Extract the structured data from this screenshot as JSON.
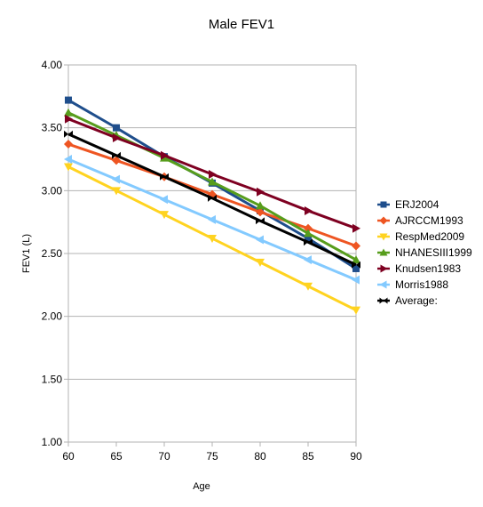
{
  "chart_data": {
    "type": "line",
    "title": "Male FEV1",
    "xlabel": "Age",
    "ylabel": "FEV1 (L)",
    "x": [
      60,
      65,
      70,
      75,
      80,
      85,
      90
    ],
    "xlim": [
      60,
      90
    ],
    "ylim": [
      1.0,
      4.0
    ],
    "yticks": [
      "1.00",
      "1.50",
      "2.00",
      "2.50",
      "3.00",
      "3.50",
      "4.00"
    ],
    "xticks": [
      "60",
      "65",
      "70",
      "75",
      "80",
      "85",
      "90"
    ],
    "grid": "horizontal",
    "legend_position": "right",
    "series": [
      {
        "name": "ERJ2004",
        "color": "#1f4e8c",
        "marker": "square",
        "values": [
          3.72,
          3.5,
          3.27,
          3.06,
          2.84,
          2.62,
          2.38
        ]
      },
      {
        "name": "AJRCCM1993",
        "color": "#ee5522",
        "marker": "diamond",
        "values": [
          3.37,
          3.24,
          3.11,
          2.97,
          2.83,
          2.7,
          2.56
        ]
      },
      {
        "name": "RespMed2009",
        "color": "#ffd320",
        "marker": "triangle-down",
        "values": [
          3.19,
          3.0,
          2.81,
          2.62,
          2.43,
          2.24,
          2.05
        ]
      },
      {
        "name": "NHANESIII1999",
        "color": "#579d1c",
        "marker": "triangle-up",
        "values": [
          3.62,
          3.44,
          3.26,
          3.07,
          2.88,
          2.66,
          2.45
        ]
      },
      {
        "name": "Knudsen1983",
        "color": "#7e0021",
        "marker": "triangle-right",
        "values": [
          3.57,
          3.42,
          3.28,
          3.13,
          2.99,
          2.84,
          2.7
        ]
      },
      {
        "name": "Morris1988",
        "color": "#83caff",
        "marker": "triangle-left",
        "values": [
          3.25,
          3.09,
          2.93,
          2.77,
          2.61,
          2.45,
          2.29
        ]
      },
      {
        "name": "Average:",
        "color": "#000000",
        "marker": "bowtie",
        "values": [
          3.45,
          3.28,
          3.11,
          2.94,
          2.76,
          2.59,
          2.41
        ]
      }
    ]
  }
}
